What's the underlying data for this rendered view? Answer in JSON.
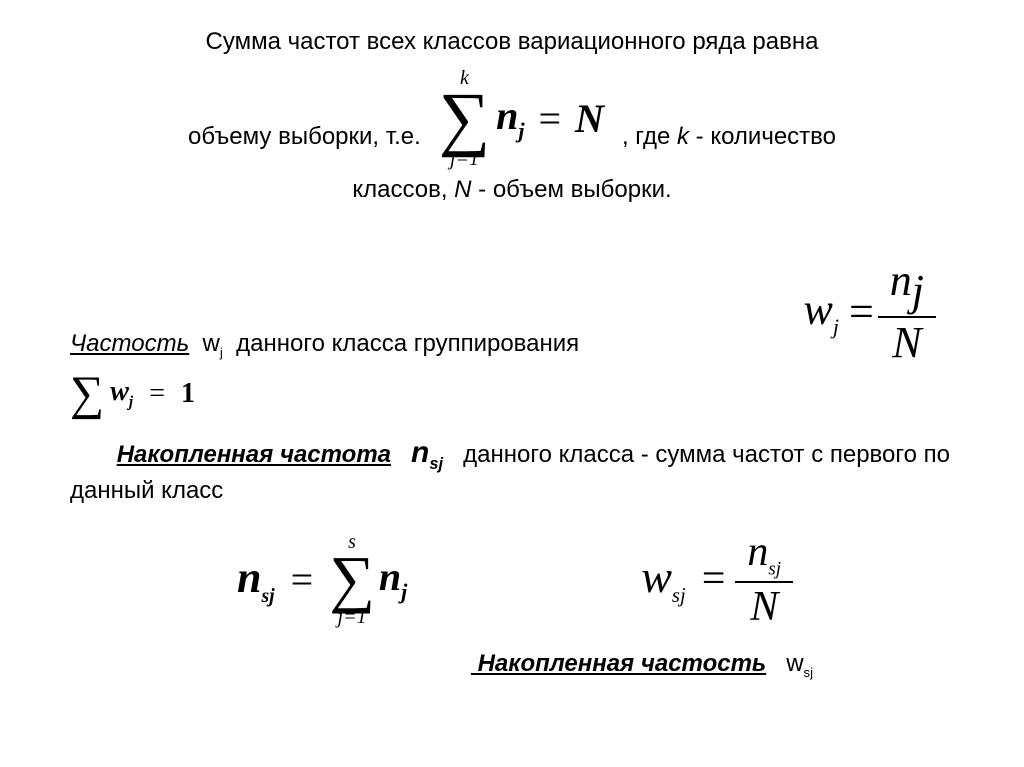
{
  "line1": "Сумма частот всех классов вариационного ряда равна",
  "row2_lead": "объему выборки, т.е.",
  "row2_tail": ",  где",
  "row2_k": "k",
  "row2_tail2": " - количество",
  "sum1_upper": "k",
  "sum1_lower": "j=1",
  "sum1_term_base": "n",
  "sum1_term_sub": "j",
  "sum1_eq": "=",
  "sum1_rhs": "N",
  "line3": "классов,",
  "line3_N": "N",
  "line3_tail": " - объем выборки.",
  "chastost_label_u": "Частость",
  "chastost_w": "w",
  "chastost_w_sub": "j",
  "chastost_tail": "данного класса группирования",
  "wj_lhs_base": "w",
  "wj_lhs_sub": "j",
  "wj_eq": "=",
  "wj_num_base": "n",
  "wj_num_sub": "j",
  "wj_den": "N",
  "sumw_term_base": "w",
  "sumw_term_sub": "j",
  "sumw_eq": "=",
  "sumw_rhs": "1",
  "nakop_freq_label": "Накопленная частота",
  "nakop_n": "n",
  "nakop_n_sub": "sj",
  "nakop_tail": "данного класса - сумма частот с первого по данный класс",
  "nsj_lhs_base": "n",
  "nsj_lhs_sub": "sj",
  "nsj_eq": "=",
  "nsj_sum_upper": "s",
  "nsj_sum_lower": "j=1",
  "nsj_term_base": "n",
  "nsj_term_sub": "j",
  "wsj_lhs_base": "w",
  "wsj_lhs_sub": "sj",
  "wsj_eq": "=",
  "wsj_num_base": "n",
  "wsj_num_sub": "sj",
  "wsj_den": "N",
  "last_label": "Накопленная частость",
  "last_w": "w",
  "last_w_sub": "sj",
  "colors": {
    "text": "#000000",
    "background": "#ffffff"
  },
  "fonts": {
    "body": "Arial",
    "math": "Times New Roman"
  }
}
